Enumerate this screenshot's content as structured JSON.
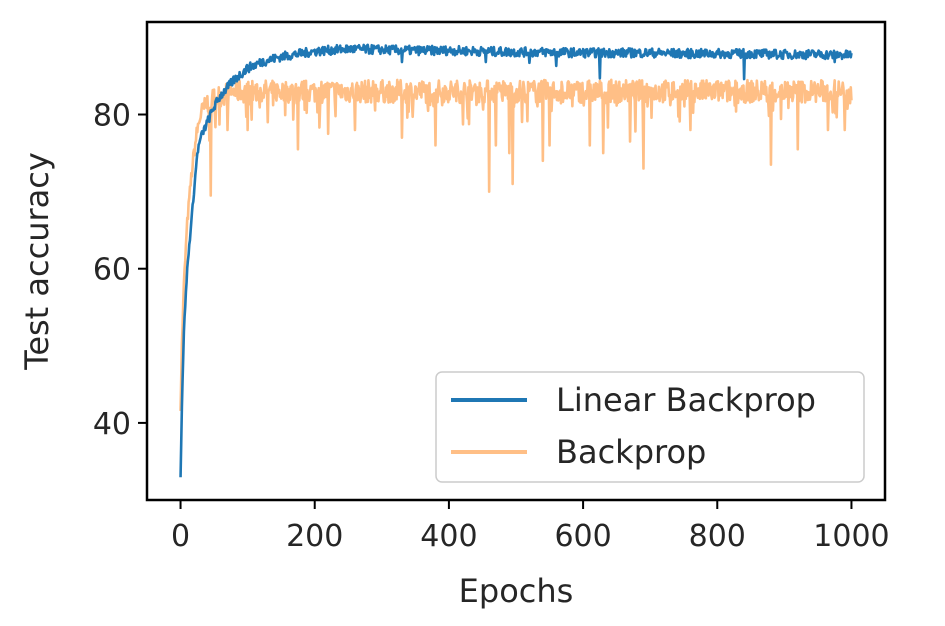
{
  "chart_data": {
    "type": "line",
    "xlabel": "Epochs",
    "ylabel": "Test accuracy",
    "xlim": [
      -50,
      1050
    ],
    "ylim": [
      30,
      92
    ],
    "xticks": [
      0,
      200,
      400,
      600,
      800,
      1000
    ],
    "yticks": [
      40,
      60,
      80
    ],
    "grid": false,
    "legend_position": "lower-right",
    "series": [
      {
        "name": "Linear Backprop",
        "color": "#1f77b4",
        "opacity": 1,
        "x": [
          0,
          2,
          5,
          10,
          15,
          20,
          25,
          30,
          40,
          50,
          60,
          80,
          100,
          120,
          150,
          200,
          250,
          300,
          350,
          400,
          450,
          500,
          550,
          600,
          650,
          700,
          750,
          800,
          850,
          900,
          950,
          1000
        ],
        "y": [
          33,
          42,
          52,
          60,
          65,
          70,
          75,
          77,
          79,
          81,
          82.5,
          84.5,
          86,
          86.8,
          87.5,
          88.2,
          88.5,
          88.4,
          88.3,
          88.3,
          88.2,
          88.1,
          88.1,
          88.0,
          88.0,
          88.0,
          87.9,
          87.9,
          87.9,
          87.8,
          87.8,
          87.7
        ],
        "noise": 0.6,
        "dips": [
          [
            330,
            86.8
          ],
          [
            455,
            86.8
          ],
          [
            520,
            86.7
          ],
          [
            560,
            86.3
          ],
          [
            625,
            84.7
          ],
          [
            840,
            84.6
          ],
          [
            975,
            86.8
          ]
        ]
      },
      {
        "name": "Backprop",
        "color": "#ff7f0e",
        "opacity": 0.5,
        "x": [
          0,
          2,
          5,
          10,
          15,
          20,
          25,
          30,
          40,
          50,
          60,
          80,
          100,
          150,
          200,
          300,
          400,
          500,
          600,
          700,
          800,
          900,
          1000
        ],
        "y": [
          42,
          50,
          58,
          66,
          71,
          75,
          78,
          80,
          81.5,
          82,
          82.5,
          83,
          83,
          83,
          83,
          83,
          83,
          83,
          83,
          83,
          83,
          83,
          83
        ],
        "noise": 1.5,
        "dips": [
          [
            45,
            69.5
          ],
          [
            70,
            78
          ],
          [
            100,
            78
          ],
          [
            130,
            79
          ],
          [
            175,
            75.5
          ],
          [
            220,
            77.5
          ],
          [
            260,
            78
          ],
          [
            330,
            77
          ],
          [
            380,
            76
          ],
          [
            460,
            70
          ],
          [
            470,
            76
          ],
          [
            490,
            75
          ],
          [
            495,
            71
          ],
          [
            540,
            74
          ],
          [
            550,
            76
          ],
          [
            610,
            76
          ],
          [
            630,
            75
          ],
          [
            670,
            76.5
          ],
          [
            690,
            73
          ],
          [
            760,
            78
          ],
          [
            880,
            73.5
          ],
          [
            920,
            75.5
          ],
          [
            965,
            78
          ],
          [
            990,
            78
          ]
        ]
      }
    ]
  }
}
